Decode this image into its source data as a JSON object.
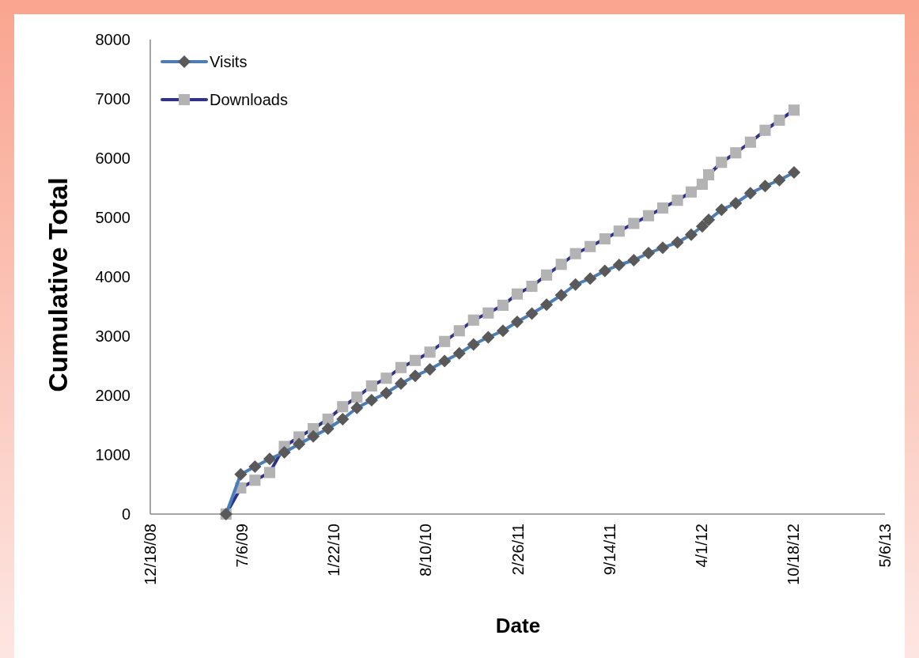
{
  "chart_data": {
    "type": "line",
    "xlabel": "Date",
    "ylabel": "Cumulative Total",
    "x": [
      "2009-06-01",
      "2009-07-03",
      "2009-08-03",
      "2009-09-04",
      "2009-10-06",
      "2009-11-07",
      "2009-12-08",
      "2010-01-09",
      "2010-02-10",
      "2010-03-13",
      "2010-04-14",
      "2010-05-16",
      "2010-06-17",
      "2010-07-18",
      "2010-08-19",
      "2010-09-20",
      "2010-10-22",
      "2010-11-22",
      "2010-12-24",
      "2011-01-25",
      "2011-02-25",
      "2011-03-29",
      "2011-04-30",
      "2011-06-01",
      "2011-07-02",
      "2011-08-03",
      "2011-09-04",
      "2011-10-05",
      "2011-11-06",
      "2011-12-08",
      "2012-01-08",
      "2012-02-09",
      "2012-03-10",
      "2012-04-03",
      "2012-04-17",
      "2012-05-15",
      "2012-06-15",
      "2012-07-17",
      "2012-08-18",
      "2012-09-18",
      "2012-10-20"
    ],
    "series": [
      {
        "name": "Visits",
        "color": "#595959",
        "marker": "diamond",
        "values": [
          0,
          670,
          800,
          930,
          1040,
          1180,
          1310,
          1440,
          1600,
          1790,
          1920,
          2040,
          2200,
          2330,
          2440,
          2580,
          2710,
          2860,
          2980,
          3090,
          3240,
          3380,
          3530,
          3690,
          3870,
          3970,
          4100,
          4200,
          4280,
          4400,
          4490,
          4580,
          4710,
          4850,
          4960,
          5130,
          5240,
          5410,
          5530,
          5630,
          5760
        ]
      },
      {
        "name": "Downloads",
        "color": "#b3b3b3",
        "marker": "square",
        "values": [
          0,
          440,
          570,
          700,
          1140,
          1300,
          1440,
          1600,
          1810,
          1970,
          2160,
          2290,
          2470,
          2590,
          2730,
          2910,
          3090,
          3270,
          3390,
          3520,
          3710,
          3840,
          4030,
          4210,
          4390,
          4510,
          4640,
          4770,
          4900,
          5030,
          5160,
          5290,
          5430,
          5560,
          5720,
          5930,
          6090,
          6270,
          6470,
          6640,
          6810
        ]
      }
    ],
    "xlim": [
      "2008-12-18",
      "2013-05-06"
    ],
    "xticks": [
      {
        "value": "2008-12-18",
        "label": "12/18/08"
      },
      {
        "value": "2009-07-06",
        "label": "7/6/09"
      },
      {
        "value": "2010-01-22",
        "label": "1/22/10"
      },
      {
        "value": "2010-08-10",
        "label": "8/10/10"
      },
      {
        "value": "2011-02-26",
        "label": "2/26/11"
      },
      {
        "value": "2011-09-14",
        "label": "9/14/11"
      },
      {
        "value": "2012-04-01",
        "label": "4/1/12"
      },
      {
        "value": "2012-10-18",
        "label": "10/18/12"
      },
      {
        "value": "2013-05-06",
        "label": "5/6/13"
      }
    ],
    "ylim": [
      0,
      8000
    ],
    "yticks": [
      0,
      1000,
      2000,
      3000,
      4000,
      5000,
      6000,
      7000,
      8000
    ],
    "grid": false,
    "legend": "top left",
    "line_style": "solid"
  }
}
